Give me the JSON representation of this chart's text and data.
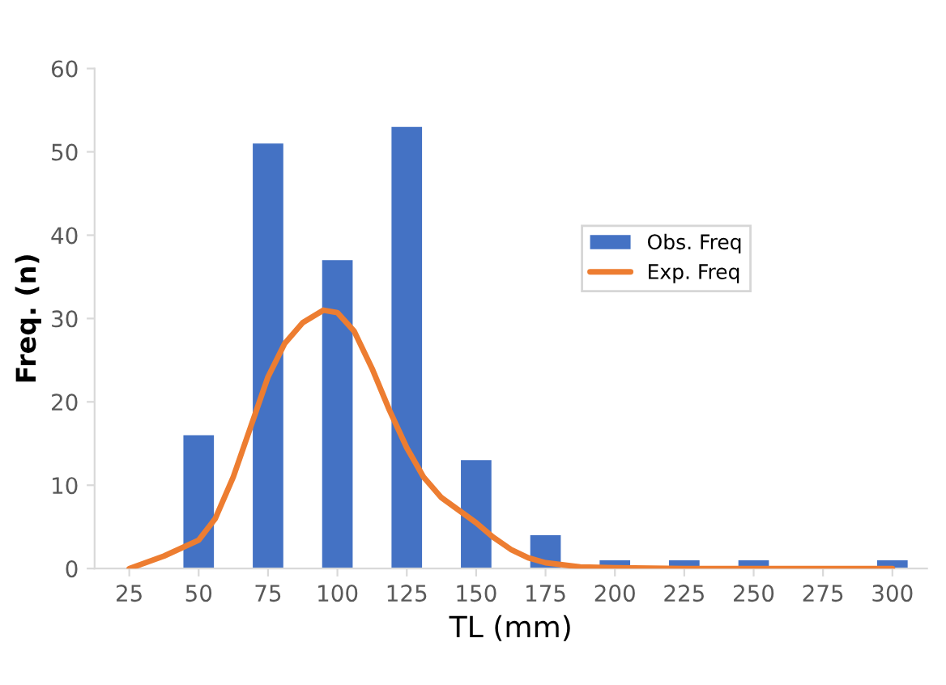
{
  "chart_data": {
    "type": "bar",
    "xlabel": "TL (mm)",
    "ylabel": "Freq. (n)",
    "x": [
      25,
      50,
      75,
      100,
      125,
      150,
      175,
      200,
      225,
      250,
      275,
      300
    ],
    "series": [
      {
        "name": "Obs. Freq",
        "color": "#4472c4",
        "values": [
          0,
          16,
          51,
          37,
          53,
          13,
          4,
          1,
          1,
          1,
          0,
          1
        ]
      },
      {
        "name": "Exp. Freq",
        "type": "line",
        "color": "#ed7d31",
        "x": [
          25,
          37.5,
          50,
          56,
          62.5,
          68.75,
          75,
          81,
          87.5,
          95,
          100,
          106,
          112.5,
          118.75,
          125,
          131,
          137.5,
          143.75,
          150,
          156,
          162.5,
          168.75,
          175,
          187.5,
          200,
          225,
          250,
          275,
          300
        ],
        "values": [
          0,
          1.5,
          3.4,
          6,
          11,
          17,
          23,
          27,
          29.5,
          31,
          30.7,
          28.5,
          24,
          19,
          14.5,
          11,
          8.5,
          7,
          5.5,
          3.8,
          2.3,
          1.3,
          0.7,
          0.2,
          0.1,
          0,
          0,
          0,
          0
        ]
      }
    ],
    "xlim": [
      12.5,
      312.5
    ],
    "xticks": [
      25,
      50,
      75,
      100,
      125,
      150,
      175,
      200,
      225,
      250,
      275,
      300
    ],
    "ylim": [
      0,
      60
    ],
    "yticks": [
      0,
      10,
      20,
      30,
      40,
      50,
      60
    ],
    "grid": false,
    "legend": "right"
  }
}
